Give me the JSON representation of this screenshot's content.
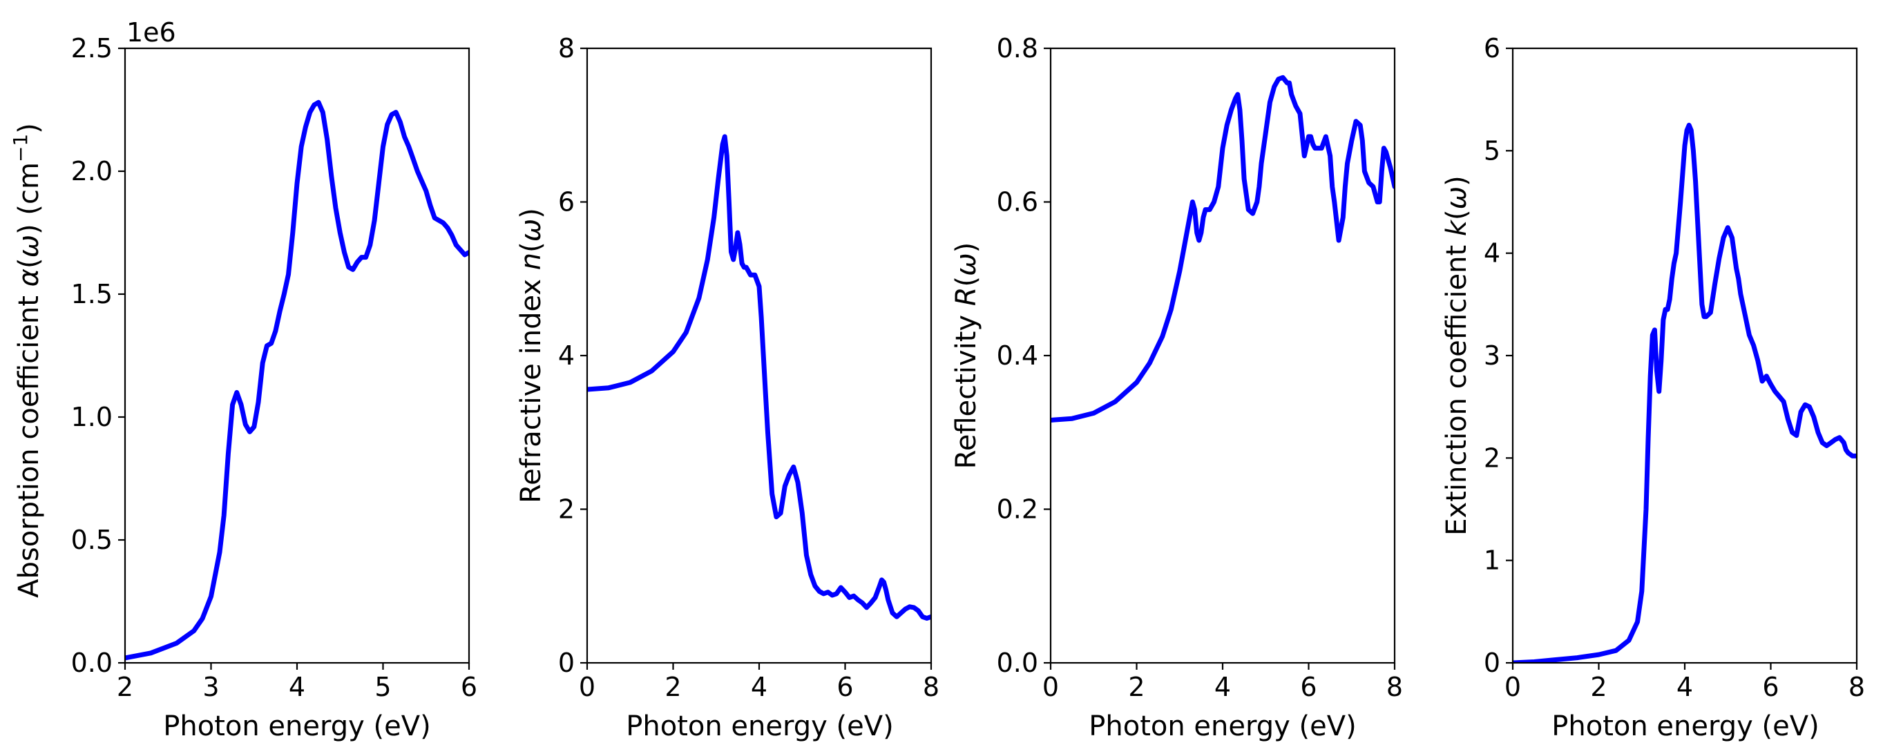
{
  "chart_data": [
    {
      "type": "line",
      "name": "absorption",
      "xlabel": "Photon energy (eV)",
      "ylabel_parts": [
        "Absorption coefficient ",
        "α",
        "(",
        "ω",
        ") (cm",
        "−1",
        ")"
      ],
      "offset_text": "1e6",
      "xlim": [
        2,
        6
      ],
      "ylim": [
        0,
        2.5
      ],
      "xticks": [
        2,
        3,
        4,
        5,
        6
      ],
      "xtick_labels": [
        "2",
        "3",
        "4",
        "5",
        "6"
      ],
      "yticks": [
        0,
        0.5,
        1.0,
        1.5,
        2.0,
        2.5
      ],
      "ytick_labels": [
        "0.0",
        "0.5",
        "1.0",
        "1.5",
        "2.0",
        "2.5"
      ],
      "grid": false,
      "series": [
        {
          "name": "alpha",
          "color": "#0000ff",
          "x": [
            2.0,
            2.3,
            2.6,
            2.8,
            2.9,
            3.0,
            3.1,
            3.15,
            3.2,
            3.25,
            3.3,
            3.35,
            3.4,
            3.45,
            3.5,
            3.55,
            3.6,
            3.65,
            3.7,
            3.75,
            3.8,
            3.85,
            3.9,
            3.95,
            4.0,
            4.05,
            4.1,
            4.15,
            4.2,
            4.25,
            4.3,
            4.35,
            4.4,
            4.45,
            4.5,
            4.55,
            4.6,
            4.65,
            4.7,
            4.75,
            4.8,
            4.85,
            4.9,
            4.95,
            5.0,
            5.05,
            5.1,
            5.15,
            5.2,
            5.25,
            5.3,
            5.35,
            5.4,
            5.45,
            5.5,
            5.55,
            5.6,
            5.65,
            5.7,
            5.75,
            5.8,
            5.85,
            5.9,
            5.95,
            6.0
          ],
          "y": [
            0.02,
            0.04,
            0.08,
            0.13,
            0.18,
            0.27,
            0.45,
            0.6,
            0.85,
            1.05,
            1.1,
            1.05,
            0.97,
            0.94,
            0.96,
            1.06,
            1.22,
            1.29,
            1.3,
            1.35,
            1.43,
            1.5,
            1.58,
            1.75,
            1.95,
            2.1,
            2.18,
            2.24,
            2.27,
            2.28,
            2.24,
            2.13,
            1.98,
            1.85,
            1.75,
            1.67,
            1.61,
            1.6,
            1.63,
            1.65,
            1.65,
            1.7,
            1.8,
            1.95,
            2.1,
            2.19,
            2.23,
            2.24,
            2.2,
            2.14,
            2.1,
            2.05,
            2.0,
            1.96,
            1.92,
            1.86,
            1.81,
            1.8,
            1.79,
            1.77,
            1.74,
            1.7,
            1.68,
            1.66,
            1.67
          ]
        }
      ]
    },
    {
      "type": "line",
      "name": "refractive-index",
      "xlabel": "Photon energy (eV)",
      "ylabel_parts": [
        "Refractive index ",
        "n",
        "(",
        "ω",
        ")"
      ],
      "offset_text": "",
      "xlim": [
        0,
        8
      ],
      "ylim": [
        0,
        8
      ],
      "xticks": [
        0,
        2,
        4,
        6,
        8
      ],
      "xtick_labels": [
        "0",
        "2",
        "4",
        "6",
        "8"
      ],
      "yticks": [
        0,
        2,
        4,
        6,
        8
      ],
      "ytick_labels": [
        "0",
        "2",
        "4",
        "6",
        "8"
      ],
      "grid": false,
      "series": [
        {
          "name": "n",
          "color": "#0000ff",
          "x": [
            0.0,
            0.5,
            1.0,
            1.5,
            2.0,
            2.3,
            2.6,
            2.8,
            2.95,
            3.05,
            3.15,
            3.2,
            3.25,
            3.3,
            3.35,
            3.4,
            3.45,
            3.5,
            3.55,
            3.6,
            3.65,
            3.7,
            3.75,
            3.8,
            3.9,
            4.0,
            4.05,
            4.1,
            4.15,
            4.2,
            4.3,
            4.4,
            4.5,
            4.6,
            4.7,
            4.8,
            4.9,
            5.0,
            5.1,
            5.2,
            5.3,
            5.4,
            5.5,
            5.6,
            5.7,
            5.8,
            5.9,
            6.0,
            6.1,
            6.2,
            6.3,
            6.4,
            6.5,
            6.6,
            6.7,
            6.8,
            6.85,
            6.9,
            6.95,
            7.0,
            7.1,
            7.2,
            7.3,
            7.4,
            7.5,
            7.6,
            7.7,
            7.8,
            7.9,
            8.0
          ],
          "y": [
            3.56,
            3.58,
            3.65,
            3.8,
            4.05,
            4.3,
            4.75,
            5.25,
            5.8,
            6.3,
            6.75,
            6.85,
            6.6,
            6.0,
            5.35,
            5.25,
            5.4,
            5.6,
            5.45,
            5.2,
            5.15,
            5.15,
            5.1,
            5.05,
            5.05,
            4.9,
            4.5,
            4.0,
            3.5,
            3.0,
            2.2,
            1.9,
            1.95,
            2.3,
            2.45,
            2.55,
            2.35,
            1.95,
            1.4,
            1.15,
            1.0,
            0.93,
            0.9,
            0.92,
            0.88,
            0.9,
            0.98,
            0.92,
            0.85,
            0.87,
            0.82,
            0.78,
            0.72,
            0.78,
            0.85,
            1.0,
            1.08,
            1.05,
            0.95,
            0.82,
            0.65,
            0.6,
            0.65,
            0.7,
            0.73,
            0.72,
            0.68,
            0.6,
            0.58,
            0.6
          ]
        }
      ]
    },
    {
      "type": "line",
      "name": "reflectivity",
      "xlabel": "Photon energy (eV)",
      "ylabel_parts": [
        "Reflectivity ",
        "R",
        "(",
        "ω",
        ")"
      ],
      "offset_text": "",
      "xlim": [
        0,
        8
      ],
      "ylim": [
        0,
        0.8
      ],
      "xticks": [
        0,
        2,
        4,
        6,
        8
      ],
      "xtick_labels": [
        "0",
        "2",
        "4",
        "6",
        "8"
      ],
      "yticks": [
        0,
        0.2,
        0.4,
        0.6,
        0.8
      ],
      "ytick_labels": [
        "0.0",
        "0.2",
        "0.4",
        "0.6",
        "0.8"
      ],
      "grid": false,
      "series": [
        {
          "name": "R",
          "color": "#0000ff",
          "x": [
            0.0,
            0.5,
            1.0,
            1.5,
            2.0,
            2.3,
            2.6,
            2.8,
            3.0,
            3.1,
            3.2,
            3.3,
            3.35,
            3.4,
            3.45,
            3.5,
            3.55,
            3.6,
            3.7,
            3.8,
            3.9,
            4.0,
            4.1,
            4.2,
            4.3,
            4.35,
            4.4,
            4.45,
            4.5,
            4.6,
            4.7,
            4.8,
            4.85,
            4.9,
            5.0,
            5.1,
            5.2,
            5.3,
            5.4,
            5.5,
            5.55,
            5.6,
            5.7,
            5.8,
            5.9,
            6.0,
            6.05,
            6.1,
            6.15,
            6.2,
            6.3,
            6.4,
            6.5,
            6.55,
            6.6,
            6.7,
            6.8,
            6.85,
            6.9,
            7.0,
            7.1,
            7.2,
            7.25,
            7.3,
            7.4,
            7.5,
            7.6,
            7.65,
            7.7,
            7.75,
            7.8,
            7.9,
            8.0
          ],
          "y": [
            0.316,
            0.318,
            0.325,
            0.34,
            0.365,
            0.39,
            0.425,
            0.46,
            0.51,
            0.54,
            0.57,
            0.6,
            0.59,
            0.56,
            0.55,
            0.56,
            0.58,
            0.59,
            0.59,
            0.6,
            0.62,
            0.67,
            0.7,
            0.72,
            0.735,
            0.74,
            0.72,
            0.68,
            0.63,
            0.59,
            0.585,
            0.6,
            0.62,
            0.65,
            0.69,
            0.73,
            0.75,
            0.76,
            0.762,
            0.755,
            0.755,
            0.74,
            0.725,
            0.715,
            0.66,
            0.685,
            0.685,
            0.675,
            0.67,
            0.67,
            0.67,
            0.685,
            0.66,
            0.62,
            0.6,
            0.55,
            0.58,
            0.62,
            0.65,
            0.68,
            0.705,
            0.7,
            0.68,
            0.64,
            0.625,
            0.62,
            0.6,
            0.6,
            0.64,
            0.67,
            0.665,
            0.645,
            0.62
          ]
        }
      ]
    },
    {
      "type": "line",
      "name": "extinction",
      "xlabel": "Photon energy (eV)",
      "ylabel_parts": [
        "Extinction coefficient ",
        "k",
        "(",
        "ω",
        ")"
      ],
      "offset_text": "",
      "xlim": [
        0,
        8
      ],
      "ylim": [
        0,
        6
      ],
      "xticks": [
        0,
        2,
        4,
        6,
        8
      ],
      "xtick_labels": [
        "0",
        "2",
        "4",
        "6",
        "8"
      ],
      "yticks": [
        0,
        1,
        2,
        3,
        4,
        5,
        6
      ],
      "ytick_labels": [
        "0",
        "1",
        "2",
        "3",
        "4",
        "5",
        "6"
      ],
      "grid": false,
      "series": [
        {
          "name": "k",
          "color": "#0000ff",
          "x": [
            0.0,
            0.5,
            1.0,
            1.5,
            2.0,
            2.4,
            2.7,
            2.9,
            3.0,
            3.1,
            3.15,
            3.2,
            3.25,
            3.3,
            3.35,
            3.4,
            3.45,
            3.5,
            3.55,
            3.6,
            3.65,
            3.7,
            3.75,
            3.8,
            3.9,
            4.0,
            4.05,
            4.1,
            4.15,
            4.2,
            4.25,
            4.3,
            4.35,
            4.4,
            4.45,
            4.5,
            4.6,
            4.7,
            4.8,
            4.9,
            5.0,
            5.1,
            5.15,
            5.2,
            5.25,
            5.3,
            5.4,
            5.5,
            5.6,
            5.7,
            5.8,
            5.9,
            6.0,
            6.1,
            6.2,
            6.3,
            6.4,
            6.5,
            6.6,
            6.7,
            6.8,
            6.9,
            7.0,
            7.1,
            7.2,
            7.3,
            7.4,
            7.5,
            7.6,
            7.7,
            7.75,
            7.8,
            7.9,
            8.0
          ],
          "y": [
            0.0,
            0.01,
            0.03,
            0.05,
            0.08,
            0.12,
            0.22,
            0.4,
            0.7,
            1.5,
            2.2,
            2.8,
            3.2,
            3.25,
            2.85,
            2.65,
            2.95,
            3.35,
            3.45,
            3.45,
            3.55,
            3.75,
            3.9,
            4.0,
            4.5,
            5.05,
            5.2,
            5.25,
            5.2,
            5.0,
            4.7,
            4.3,
            3.9,
            3.5,
            3.38,
            3.38,
            3.42,
            3.7,
            3.95,
            4.15,
            4.25,
            4.15,
            4.0,
            3.85,
            3.75,
            3.6,
            3.4,
            3.2,
            3.1,
            2.95,
            2.75,
            2.8,
            2.72,
            2.65,
            2.6,
            2.55,
            2.38,
            2.25,
            2.22,
            2.45,
            2.52,
            2.5,
            2.4,
            2.25,
            2.15,
            2.12,
            2.15,
            2.18,
            2.2,
            2.15,
            2.08,
            2.05,
            2.02,
            2.02
          ]
        }
      ]
    }
  ]
}
